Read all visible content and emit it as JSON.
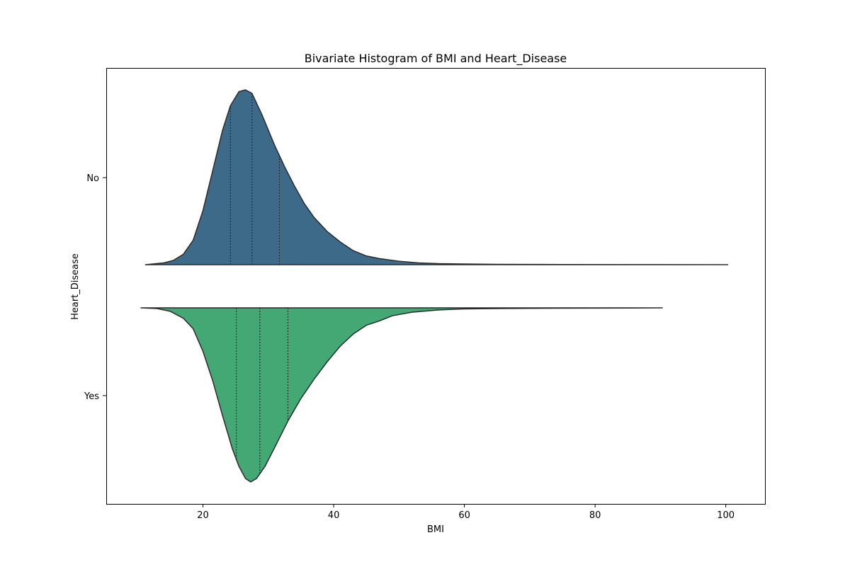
{
  "chart_data": {
    "type": "violin",
    "title": "Bivariate Histogram of BMI and Heart_Disease",
    "xlabel": "BMI",
    "ylabel": "Heart_Disease",
    "xlim": [
      5.2,
      106.0
    ],
    "xticks": [
      20,
      40,
      60,
      80,
      100
    ],
    "categories": [
      "No",
      "Yes"
    ],
    "orientation": "horizontal",
    "split": true,
    "grid": false,
    "series": [
      {
        "name": "No",
        "color": "#3e6a8a",
        "side": "up",
        "range": [
          11.2,
          100.3
        ],
        "quartiles": [
          24.2,
          27.5,
          31.7
        ],
        "density": [
          [
            11.2,
            0.0
          ],
          [
            14.0,
            0.01
          ],
          [
            15.5,
            0.025
          ],
          [
            17.0,
            0.06
          ],
          [
            18.5,
            0.14
          ],
          [
            20.0,
            0.31
          ],
          [
            21.5,
            0.54
          ],
          [
            23.0,
            0.77
          ],
          [
            24.2,
            0.91
          ],
          [
            25.5,
            0.99
          ],
          [
            26.5,
            1.0
          ],
          [
            27.5,
            0.98
          ],
          [
            29.0,
            0.86
          ],
          [
            31.0,
            0.68
          ],
          [
            32.5,
            0.56
          ],
          [
            34.0,
            0.45
          ],
          [
            35.5,
            0.35
          ],
          [
            37.0,
            0.27
          ],
          [
            39.0,
            0.19
          ],
          [
            41.0,
            0.13
          ],
          [
            43.0,
            0.08
          ],
          [
            45.0,
            0.05
          ],
          [
            47.0,
            0.035
          ],
          [
            50.0,
            0.02
          ],
          [
            53.0,
            0.01
          ],
          [
            56.0,
            0.006
          ],
          [
            60.0,
            0.004
          ],
          [
            65.0,
            0.002
          ],
          [
            75.0,
            0.001
          ],
          [
            90.0,
            0.0005
          ],
          [
            100.3,
            0.0
          ]
        ]
      },
      {
        "name": "Yes",
        "color": "#43a874",
        "side": "down",
        "range": [
          10.5,
          90.3
        ],
        "quartiles": [
          25.1,
          28.7,
          33.0
        ],
        "density": [
          [
            10.5,
            0.0
          ],
          [
            13.0,
            0.004
          ],
          [
            15.0,
            0.02
          ],
          [
            17.0,
            0.06
          ],
          [
            18.5,
            0.12
          ],
          [
            20.0,
            0.25
          ],
          [
            21.5,
            0.42
          ],
          [
            23.0,
            0.62
          ],
          [
            24.5,
            0.81
          ],
          [
            25.5,
            0.91
          ],
          [
            26.5,
            0.98
          ],
          [
            27.3,
            1.0
          ],
          [
            28.2,
            0.98
          ],
          [
            29.5,
            0.91
          ],
          [
            31.0,
            0.8
          ],
          [
            33.0,
            0.65
          ],
          [
            35.0,
            0.52
          ],
          [
            37.0,
            0.41
          ],
          [
            39.0,
            0.31
          ],
          [
            41.0,
            0.22
          ],
          [
            43.0,
            0.15
          ],
          [
            45.0,
            0.1
          ],
          [
            47.0,
            0.075
          ],
          [
            49.0,
            0.045
          ],
          [
            52.0,
            0.025
          ],
          [
            56.0,
            0.012
          ],
          [
            60.0,
            0.006
          ],
          [
            65.0,
            0.004
          ],
          [
            75.0,
            0.002
          ],
          [
            85.0,
            0.001
          ],
          [
            90.3,
            0.0
          ]
        ]
      }
    ]
  }
}
